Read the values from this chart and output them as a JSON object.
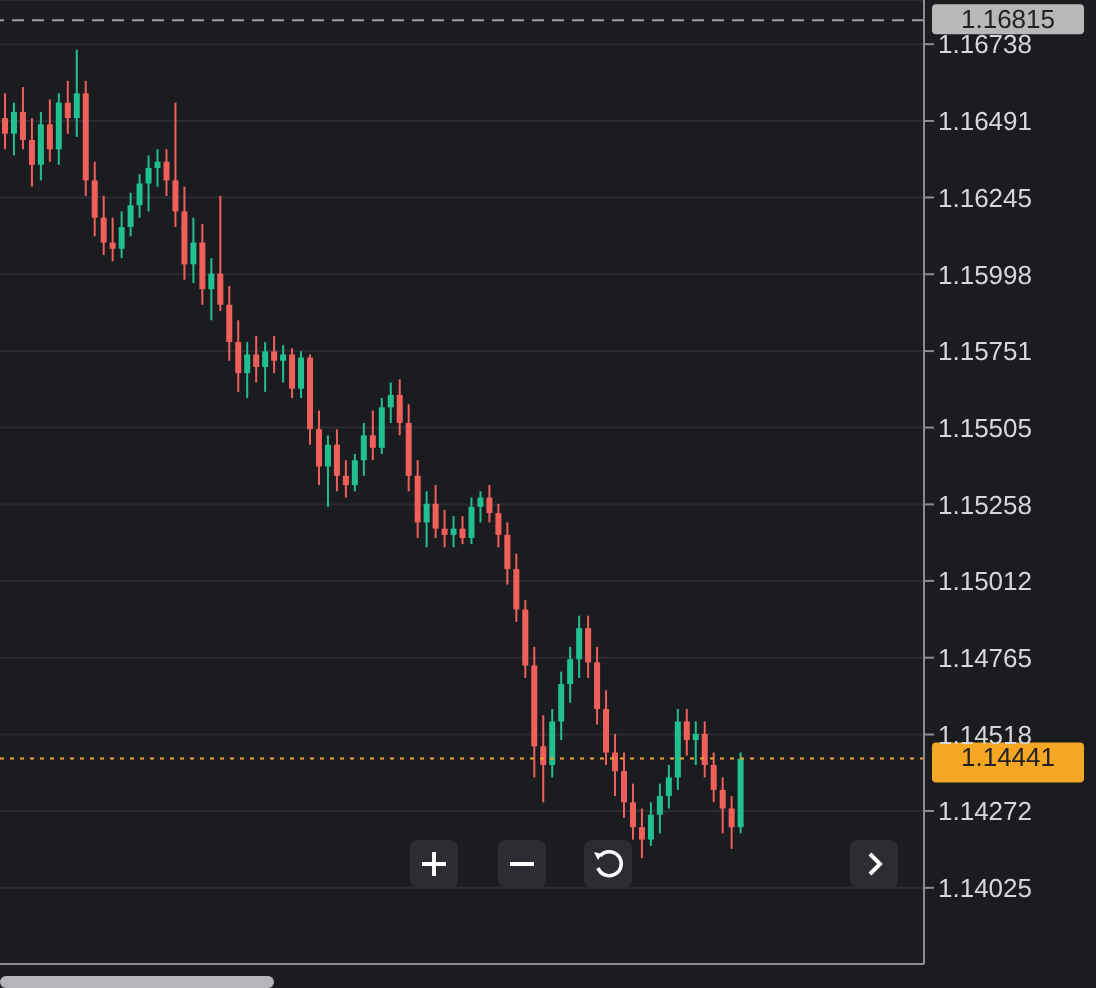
{
  "chart_data": {
    "type": "candlestick",
    "categories": [
      null,
      null,
      null,
      null,
      null,
      null,
      null,
      null,
      null,
      null,
      null,
      null,
      null,
      null,
      null,
      null,
      null,
      null,
      null,
      null,
      null,
      null,
      null,
      null,
      null,
      null,
      null,
      null,
      null,
      null,
      null,
      null,
      null,
      null,
      null,
      null,
      null,
      null,
      null,
      null,
      null,
      null,
      null,
      null,
      null,
      null,
      null,
      null,
      null,
      null,
      null,
      null,
      null,
      null,
      null,
      null,
      null,
      null,
      null,
      null,
      null,
      null,
      null,
      null,
      null,
      null,
      null,
      null,
      null,
      null,
      null,
      null,
      null,
      null,
      null,
      null,
      null,
      null,
      null,
      null,
      null,
      null,
      null,
      null,
      null,
      null,
      null,
      null,
      null,
      null,
      null,
      null,
      null,
      null,
      null,
      null,
      null,
      null,
      null,
      null,
      null,
      null,
      null
    ],
    "ohlc": [
      [
        1.165,
        1.1658,
        1.164,
        1.1645
      ],
      [
        1.1645,
        1.1655,
        1.1638,
        1.1652
      ],
      [
        1.1652,
        1.166,
        1.164,
        1.1643
      ],
      [
        1.1643,
        1.165,
        1.1628,
        1.1635
      ],
      [
        1.1635,
        1.1652,
        1.163,
        1.1648
      ],
      [
        1.1648,
        1.1656,
        1.1636,
        1.164
      ],
      [
        1.164,
        1.1658,
        1.1635,
        1.1655
      ],
      [
        1.1655,
        1.1662,
        1.1645,
        1.165
      ],
      [
        1.165,
        1.1672,
        1.1644,
        1.1658
      ],
      [
        1.1658,
        1.1662,
        1.1625,
        1.163
      ],
      [
        1.163,
        1.1636,
        1.1612,
        1.1618
      ],
      [
        1.1618,
        1.1625,
        1.1606,
        1.161
      ],
      [
        1.161,
        1.1618,
        1.1604,
        1.1608
      ],
      [
        1.1608,
        1.162,
        1.1605,
        1.1615
      ],
      [
        1.1615,
        1.1626,
        1.1612,
        1.1622
      ],
      [
        1.1622,
        1.1632,
        1.1618,
        1.1629
      ],
      [
        1.1629,
        1.1638,
        1.162,
        1.1634
      ],
      [
        1.1634,
        1.164,
        1.1628,
        1.1636
      ],
      [
        1.1636,
        1.164,
        1.1625,
        1.163
      ],
      [
        1.163,
        1.1655,
        1.1615,
        1.162
      ],
      [
        1.162,
        1.1628,
        1.1598,
        1.1603
      ],
      [
        1.1603,
        1.1618,
        1.1597,
        1.161
      ],
      [
        1.161,
        1.1616,
        1.159,
        1.1595
      ],
      [
        1.1595,
        1.1605,
        1.1585,
        1.16
      ],
      [
        1.16,
        1.1625,
        1.1588,
        1.159
      ],
      [
        1.159,
        1.1596,
        1.1572,
        1.1578
      ],
      [
        1.1578,
        1.1585,
        1.1562,
        1.1568
      ],
      [
        1.1568,
        1.1578,
        1.156,
        1.1574
      ],
      [
        1.1574,
        1.158,
        1.1565,
        1.157
      ],
      [
        1.157,
        1.1578,
        1.1562,
        1.1575
      ],
      [
        1.1575,
        1.158,
        1.1568,
        1.1572
      ],
      [
        1.1572,
        1.1577,
        1.1565,
        1.1574
      ],
      [
        1.1574,
        1.1576,
        1.156,
        1.1563
      ],
      [
        1.1563,
        1.1575,
        1.156,
        1.1573
      ],
      [
        1.1573,
        1.1574,
        1.1545,
        1.155
      ],
      [
        1.155,
        1.1556,
        1.1532,
        1.1538
      ],
      [
        1.1538,
        1.1548,
        1.1525,
        1.1545
      ],
      [
        1.1545,
        1.155,
        1.153,
        1.1535
      ],
      [
        1.1535,
        1.154,
        1.1528,
        1.1532
      ],
      [
        1.1532,
        1.1542,
        1.153,
        1.154
      ],
      [
        1.154,
        1.1552,
        1.1535,
        1.1548
      ],
      [
        1.1548,
        1.1556,
        1.154,
        1.1544
      ],
      [
        1.1544,
        1.156,
        1.1542,
        1.1557
      ],
      [
        1.1557,
        1.1565,
        1.1552,
        1.1561
      ],
      [
        1.1561,
        1.1566,
        1.1548,
        1.1552
      ],
      [
        1.1552,
        1.1558,
        1.153,
        1.1535
      ],
      [
        1.1535,
        1.154,
        1.1515,
        1.152
      ],
      [
        1.152,
        1.153,
        1.1512,
        1.1526
      ],
      [
        1.1526,
        1.1532,
        1.1515,
        1.1518
      ],
      [
        1.1518,
        1.1524,
        1.1512,
        1.1516
      ],
      [
        1.1516,
        1.1522,
        1.1512,
        1.1518
      ],
      [
        1.1518,
        1.1522,
        1.1513,
        1.1515
      ],
      [
        1.1515,
        1.1528,
        1.1513,
        1.1525
      ],
      [
        1.1525,
        1.153,
        1.152,
        1.1528
      ],
      [
        1.1528,
        1.1532,
        1.152,
        1.1523
      ],
      [
        1.1523,
        1.1526,
        1.1512,
        1.1516
      ],
      [
        1.1516,
        1.152,
        1.15,
        1.1505
      ],
      [
        1.1505,
        1.151,
        1.1488,
        1.1492
      ],
      [
        1.1492,
        1.1495,
        1.147,
        1.1474
      ],
      [
        1.1474,
        1.148,
        1.1438,
        1.1448
      ],
      [
        1.1448,
        1.1458,
        1.143,
        1.1442
      ],
      [
        1.1442,
        1.146,
        1.1438,
        1.1456
      ],
      [
        1.1456,
        1.1472,
        1.145,
        1.1468
      ],
      [
        1.1468,
        1.148,
        1.1462,
        1.1476
      ],
      [
        1.1476,
        1.149,
        1.147,
        1.1486
      ],
      [
        1.1486,
        1.149,
        1.147,
        1.1475
      ],
      [
        1.1475,
        1.148,
        1.1455,
        1.146
      ],
      [
        1.146,
        1.1466,
        1.1442,
        1.1446
      ],
      [
        1.1446,
        1.1452,
        1.1432,
        1.144
      ],
      [
        1.144,
        1.1446,
        1.1425,
        1.143
      ],
      [
        1.143,
        1.1436,
        1.1418,
        1.1422
      ],
      [
        1.1422,
        1.1428,
        1.1412,
        1.1418
      ],
      [
        1.1418,
        1.143,
        1.1416,
        1.1426
      ],
      [
        1.1426,
        1.1436,
        1.142,
        1.1432
      ],
      [
        1.1432,
        1.1442,
        1.1428,
        1.1438
      ],
      [
        1.1438,
        1.146,
        1.1434,
        1.1456
      ],
      [
        1.1456,
        1.146,
        1.1445,
        1.145
      ],
      [
        1.145,
        1.1456,
        1.1442,
        1.1452
      ],
      [
        1.1452,
        1.1456,
        1.1438,
        1.1442
      ],
      [
        1.1442,
        1.1446,
        1.143,
        1.1434
      ],
      [
        1.1434,
        1.1438,
        1.142,
        1.1428
      ],
      [
        1.1428,
        1.1432,
        1.1415,
        1.1422
      ],
      [
        1.1422,
        1.1446,
        1.142,
        1.1444
      ],
      null,
      null,
      null,
      null,
      null,
      null,
      null,
      null,
      null,
      null,
      null,
      null,
      null,
      null,
      null,
      null,
      null,
      null,
      null,
      null
    ],
    "colors": [
      "#f0605a",
      "#22c08e",
      "#f0605a",
      "#f0605a",
      "#22c08e",
      "#f0605a",
      "#22c08e",
      "#f0605a",
      "#22c08e",
      "#f0605a",
      "#f0605a",
      "#f0605a",
      "#f0605a",
      "#22c08e",
      "#22c08e",
      "#22c08e",
      "#22c08e",
      "#22c08e",
      "#f0605a",
      "#f0605a",
      "#f0605a",
      "#22c08e",
      "#f0605a",
      "#22c08e",
      "#f0605a",
      "#f0605a",
      "#f0605a",
      "#22c08e",
      "#f0605a",
      "#22c08e",
      "#f0605a",
      "#22c08e",
      "#f0605a",
      "#22c08e",
      "#f0605a",
      "#f0605a",
      "#22c08e",
      "#f0605a",
      "#f0605a",
      "#22c08e",
      "#22c08e",
      "#f0605a",
      "#22c08e",
      "#22c08e",
      "#f0605a",
      "#f0605a",
      "#f0605a",
      "#22c08e",
      "#f0605a",
      "#f0605a",
      "#22c08e",
      "#f0605a",
      "#22c08e",
      "#22c08e",
      "#f0605a",
      "#f0605a",
      "#f0605a",
      "#f0605a",
      "#f0605a",
      "#f0605a",
      "#f0605a",
      "#22c08e",
      "#22c08e",
      "#22c08e",
      "#22c08e",
      "#f0605a",
      "#f0605a",
      "#f0605a",
      "#f0605a",
      "#f0605a",
      "#f0605a",
      "#f0605a",
      "#22c08e",
      "#22c08e",
      "#22c08e",
      "#22c08e",
      "#f0605a",
      "#22c08e",
      "#f0605a",
      "#f0605a",
      "#f0605a",
      "#f0605a",
      "#22c08e",
      null,
      null,
      null,
      null,
      null,
      null,
      null,
      null,
      null,
      null,
      null,
      null,
      null,
      null,
      null,
      null,
      null,
      null,
      null,
      null
    ],
    "ylim": [
      1.1378,
      1.1688
    ],
    "yticks": [
      1.14025,
      1.14272,
      1.14518,
      1.14765,
      1.15012,
      1.15258,
      1.15505,
      1.15751,
      1.15998,
      1.16245,
      1.16491,
      1.16738
    ],
    "grid": "y",
    "tick_labels": "y",
    "ref_lines": [
      {
        "axis": "y",
        "value": 1.16815,
        "label": "1.16815",
        "color": "#9e9e9e",
        "line_style": "dashed"
      },
      {
        "axis": "y",
        "value": 1.14441,
        "label": "1.14441",
        "color": "#f5a623",
        "line_style": "dotted"
      }
    ]
  }
}
